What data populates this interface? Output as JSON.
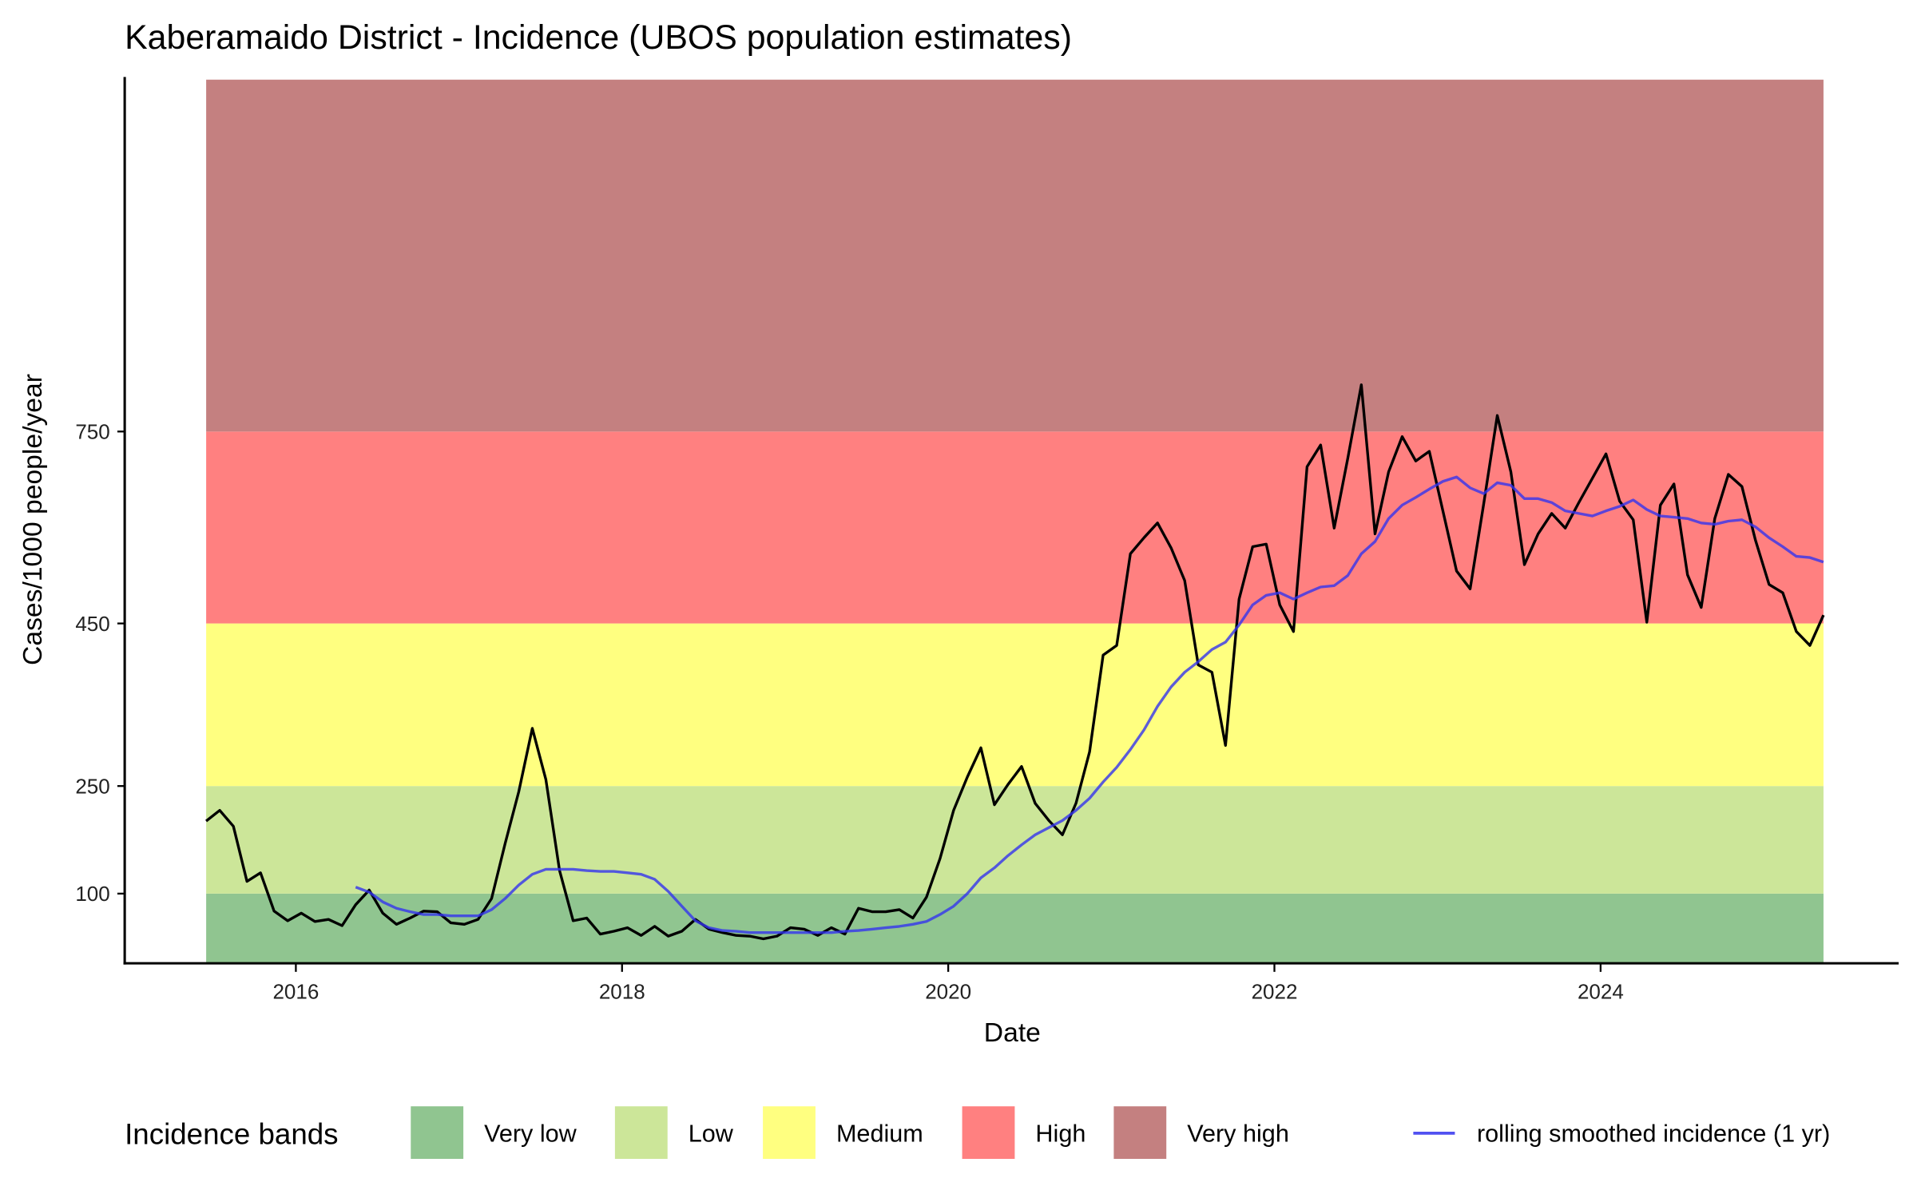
{
  "chart_data": {
    "type": "line",
    "title": "Kaberamaido District - Incidence (UBOS population estimates)",
    "xlabel": "Date",
    "ylabel": "Cases/1000 people/year",
    "x_ticks": [
      2016,
      2018,
      2020,
      2022,
      2024
    ],
    "y_ticks": [
      100,
      250,
      450,
      750
    ],
    "y_scale_breaks": [
      [
        0,
        0
      ],
      [
        100,
        100
      ],
      [
        250,
        250
      ],
      [
        450,
        450
      ],
      [
        750,
        750
      ]
    ],
    "ylim": [
      0,
      1300
    ],
    "xlim": [
      2015.0,
      2025.8
    ],
    "grid": false,
    "start_date": 2015.45,
    "step_years": 0.0833333,
    "bands": [
      {
        "name": "Very low",
        "from": 0,
        "to": 100,
        "color": "#90c590"
      },
      {
        "name": "Low",
        "from": 100,
        "to": 250,
        "color": "#cce699"
      },
      {
        "name": "Medium",
        "from": 250,
        "to": 450,
        "color": "#ffff80"
      },
      {
        "name": "High",
        "from": 450,
        "to": 750,
        "color": "#ff8080"
      },
      {
        "name": "Very high",
        "from": 750,
        "to": 1300,
        "color": "#c48080"
      }
    ],
    "series": [
      {
        "name": "incidence",
        "color": "#000000",
        "start_index": 0,
        "values": [
          201,
          216,
          194,
          117,
          129,
          75,
          61,
          72,
          60,
          63,
          54,
          84,
          105,
          72,
          56,
          65,
          75,
          74,
          58,
          56,
          63,
          93,
          170,
          242,
          321,
          258,
          132,
          61,
          65,
          42,
          46,
          51,
          40,
          53,
          39,
          46,
          63,
          49,
          44,
          40,
          39,
          35,
          39,
          51,
          49,
          40,
          51,
          42,
          79,
          74,
          74,
          77,
          65,
          95,
          149,
          216,
          261,
          297,
          224,
          252,
          274,
          226,
          202,
          182,
          226,
          292,
          411,
          423,
          559,
          584,
          607,
          568,
          517,
          399,
          390,
          300,
          488,
          570,
          574,
          479,
          440,
          695,
          729,
          599,
          708,
          823,
          590,
          687,
          742,
          704,
          719,
          626,
          532,
          504,
          637,
          775,
          687,
          542,
          590,
          622,
          599,
          639,
          677,
          715,
          641,
          612,
          452,
          635,
          668,
          526,
          475,
          614,
          683,
          664,
          580,
          511,
          498,
          440,
          423,
          463
        ]
      },
      {
        "name": "rolling smoothed incidence (1 yr)",
        "color": "#3333ee",
        "start_index": 11,
        "values": [
          109,
          102,
          88,
          79,
          74,
          70,
          70,
          68,
          68,
          68,
          77,
          93,
          112,
          127,
          134,
          134,
          134,
          132,
          131,
          131,
          129,
          127,
          120,
          103,
          82,
          61,
          51,
          47,
          46,
          44,
          44,
          44,
          44,
          44,
          44,
          44,
          46,
          47,
          49,
          51,
          53,
          56,
          60,
          70,
          82,
          100,
          122,
          136,
          153,
          168,
          182,
          192,
          202,
          216,
          233,
          255,
          273,
          295,
          319,
          348,
          372,
          390,
          403,
          418,
          427,
          448,
          479,
          494,
          498,
          488,
          498,
          507,
          509,
          525,
          559,
          578,
          614,
          635,
          647,
          660,
          672,
          679,
          662,
          653,
          670,
          666,
          645,
          645,
          639,
          626,
          622,
          618,
          626,
          633,
          643,
          628,
          618,
          616,
          614,
          607,
          605,
          610,
          612,
          601,
          584,
          570,
          555,
          553,
          546
        ]
      }
    ],
    "legend": {
      "title": "Incidence bands",
      "position": "bottom",
      "line_label": "rolling smoothed incidence (1 yr)"
    }
  }
}
